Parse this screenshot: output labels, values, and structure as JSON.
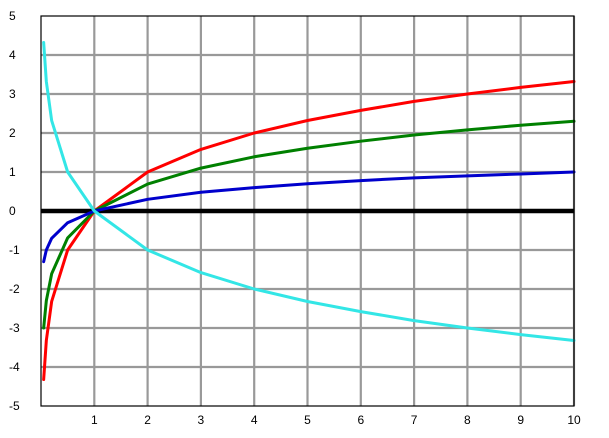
{
  "chart_data": {
    "type": "line",
    "title": "",
    "xlabel": "",
    "ylabel": "",
    "xlim": [
      0,
      10
    ],
    "ylim": [
      -5,
      5
    ],
    "grid": true,
    "legend": "none",
    "x_ticks": [
      "1",
      "2",
      "3",
      "4",
      "5",
      "6",
      "7",
      "8",
      "9",
      "10"
    ],
    "y_ticks": [
      "5",
      "4",
      "3",
      "2",
      "1",
      "0",
      "-1",
      "-2",
      "-3",
      "-4",
      "-5"
    ],
    "series": [
      {
        "color": "#ff0000",
        "x": [
          0.05,
          0.1,
          0.2,
          0.5,
          1,
          2,
          3,
          4,
          5,
          6,
          7,
          8,
          9,
          10
        ],
        "y": [
          -4.32,
          -3.32,
          -2.32,
          -1.0,
          0.0,
          1.0,
          1.58,
          2.0,
          2.32,
          2.58,
          2.81,
          3.0,
          3.17,
          3.32
        ]
      },
      {
        "color": "#008000",
        "x": [
          0.05,
          0.1,
          0.2,
          0.5,
          1,
          2,
          3,
          4,
          5,
          6,
          7,
          8,
          9,
          10
        ],
        "y": [
          -3.0,
          -2.3,
          -1.61,
          -0.69,
          0.0,
          0.69,
          1.1,
          1.39,
          1.61,
          1.79,
          1.95,
          2.08,
          2.2,
          2.3
        ]
      },
      {
        "color": "#0000cc",
        "x": [
          0.05,
          0.1,
          0.2,
          0.5,
          1,
          2,
          3,
          4,
          5,
          6,
          7,
          8,
          9,
          10
        ],
        "y": [
          -1.3,
          -1.0,
          -0.7,
          -0.3,
          0.0,
          0.3,
          0.48,
          0.6,
          0.7,
          0.78,
          0.85,
          0.9,
          0.95,
          1.0
        ]
      },
      {
        "color": "#33e6e6",
        "x": [
          0.05,
          0.1,
          0.2,
          0.5,
          1,
          2,
          3,
          4,
          5,
          6,
          7,
          8,
          9,
          10
        ],
        "y": [
          4.32,
          3.32,
          2.32,
          1.0,
          0.0,
          -1.0,
          -1.58,
          -2.0,
          -2.32,
          -2.58,
          -2.81,
          -3.0,
          -3.17,
          -3.32
        ]
      }
    ]
  }
}
